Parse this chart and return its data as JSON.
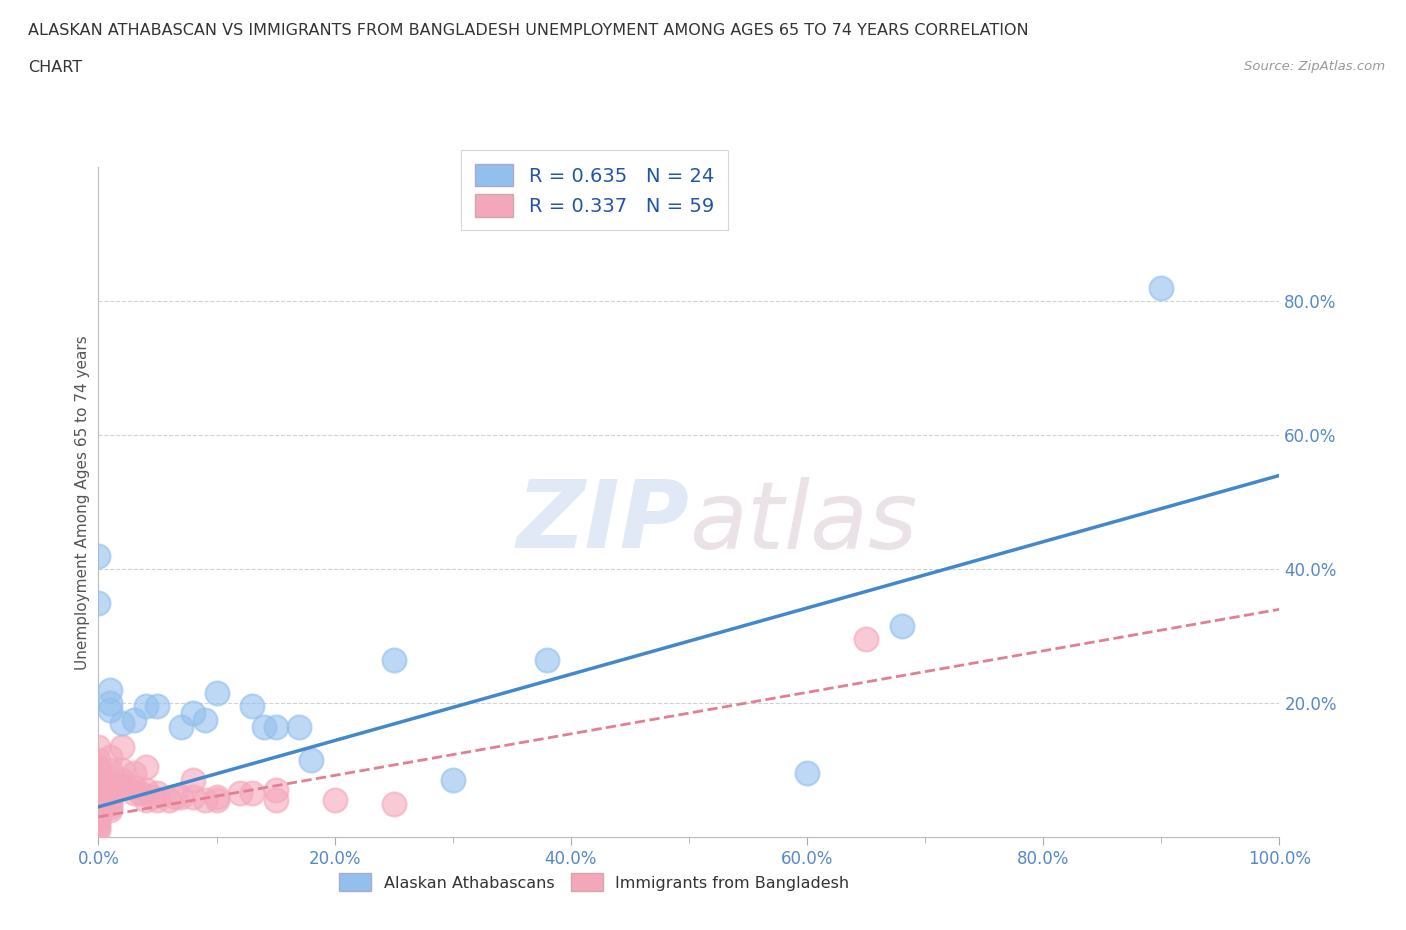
{
  "title_line1": "ALASKAN ATHABASCAN VS IMMIGRANTS FROM BANGLADESH UNEMPLOYMENT AMONG AGES 65 TO 74 YEARS CORRELATION",
  "title_line2": "CHART",
  "source": "Source: ZipAtlas.com",
  "ylabel": "Unemployment Among Ages 65 to 74 years",
  "xlim": [
    0.0,
    1.0
  ],
  "ylim": [
    0.0,
    1.0
  ],
  "xtick_labels": [
    "0.0%",
    "",
    "",
    "",
    "",
    "",
    "",
    "",
    "",
    "",
    "20.0%",
    "",
    "",
    "",
    "",
    "",
    "",
    "",
    "",
    "",
    "40.0%",
    "",
    "",
    "",
    "",
    "",
    "",
    "",
    "",
    "",
    "60.0%",
    "",
    "",
    "",
    "",
    "",
    "",
    "",
    "",
    "",
    "80.0%",
    "",
    "",
    "",
    "",
    "",
    "",
    "",
    "",
    "",
    "100.0%"
  ],
  "xtick_vals": [
    0.0,
    0.02,
    0.04,
    0.06,
    0.08,
    0.1,
    0.12,
    0.14,
    0.16,
    0.18,
    0.2,
    0.22,
    0.24,
    0.26,
    0.28,
    0.3,
    0.32,
    0.34,
    0.36,
    0.38,
    0.4,
    0.42,
    0.44,
    0.46,
    0.48,
    0.5,
    0.52,
    0.54,
    0.56,
    0.58,
    0.6,
    0.62,
    0.64,
    0.66,
    0.68,
    0.7,
    0.72,
    0.74,
    0.76,
    0.78,
    0.8,
    0.82,
    0.84,
    0.86,
    0.88,
    0.9,
    0.92,
    0.94,
    0.96,
    0.98,
    1.0
  ],
  "xtick_major_vals": [
    0.0,
    0.2,
    0.4,
    0.6,
    0.8,
    1.0
  ],
  "xtick_major_labels": [
    "0.0%",
    "20.0%",
    "40.0%",
    "60.0%",
    "80.0%",
    "100.0%"
  ],
  "ytick_vals": [
    0.2,
    0.4,
    0.6,
    0.8
  ],
  "ytick_labels": [
    "20.0%",
    "40.0%",
    "60.0%",
    "80.0%"
  ],
  "watermark_zip": "ZIP",
  "watermark_atlas": "atlas",
  "legend_r1": "R = 0.635   N = 24",
  "legend_r2": "R = 0.337   N = 59",
  "blue_color": "#92BFED",
  "pink_color": "#F4A7BB",
  "line_blue": "#4488CC",
  "line_pink": "#E08090",
  "tick_color": "#5588CC",
  "alaskan_points": [
    [
      0.0,
      0.42
    ],
    [
      0.0,
      0.35
    ],
    [
      0.01,
      0.22
    ],
    [
      0.01,
      0.2
    ],
    [
      0.01,
      0.19
    ],
    [
      0.02,
      0.17
    ],
    [
      0.03,
      0.175
    ],
    [
      0.04,
      0.195
    ],
    [
      0.05,
      0.195
    ],
    [
      0.07,
      0.165
    ],
    [
      0.08,
      0.185
    ],
    [
      0.09,
      0.175
    ],
    [
      0.1,
      0.215
    ],
    [
      0.13,
      0.195
    ],
    [
      0.14,
      0.165
    ],
    [
      0.15,
      0.165
    ],
    [
      0.17,
      0.165
    ],
    [
      0.18,
      0.115
    ],
    [
      0.25,
      0.265
    ],
    [
      0.3,
      0.085
    ],
    [
      0.38,
      0.265
    ],
    [
      0.6,
      0.095
    ],
    [
      0.68,
      0.315
    ],
    [
      0.9,
      0.82
    ]
  ],
  "bangladesh_points": [
    [
      0.0,
      0.135
    ],
    [
      0.0,
      0.115
    ],
    [
      0.0,
      0.105
    ],
    [
      0.0,
      0.1
    ],
    [
      0.0,
      0.09
    ],
    [
      0.0,
      0.085
    ],
    [
      0.0,
      0.075
    ],
    [
      0.0,
      0.07
    ],
    [
      0.0,
      0.065
    ],
    [
      0.0,
      0.06
    ],
    [
      0.0,
      0.055
    ],
    [
      0.0,
      0.05
    ],
    [
      0.0,
      0.045
    ],
    [
      0.0,
      0.04
    ],
    [
      0.0,
      0.035
    ],
    [
      0.0,
      0.03
    ],
    [
      0.0,
      0.025
    ],
    [
      0.0,
      0.02
    ],
    [
      0.0,
      0.015
    ],
    [
      0.0,
      0.01
    ],
    [
      0.01,
      0.12
    ],
    [
      0.01,
      0.1
    ],
    [
      0.01,
      0.08
    ],
    [
      0.01,
      0.07
    ],
    [
      0.01,
      0.06
    ],
    [
      0.01,
      0.055
    ],
    [
      0.01,
      0.05
    ],
    [
      0.01,
      0.045
    ],
    [
      0.01,
      0.04
    ],
    [
      0.02,
      0.135
    ],
    [
      0.02,
      0.1
    ],
    [
      0.02,
      0.085
    ],
    [
      0.02,
      0.075
    ],
    [
      0.025,
      0.075
    ],
    [
      0.03,
      0.095
    ],
    [
      0.03,
      0.075
    ],
    [
      0.03,
      0.065
    ],
    [
      0.035,
      0.065
    ],
    [
      0.04,
      0.105
    ],
    [
      0.04,
      0.07
    ],
    [
      0.04,
      0.055
    ],
    [
      0.045,
      0.06
    ],
    [
      0.05,
      0.065
    ],
    [
      0.05,
      0.055
    ],
    [
      0.06,
      0.055
    ],
    [
      0.065,
      0.06
    ],
    [
      0.07,
      0.06
    ],
    [
      0.08,
      0.085
    ],
    [
      0.08,
      0.06
    ],
    [
      0.09,
      0.055
    ],
    [
      0.1,
      0.06
    ],
    [
      0.1,
      0.055
    ],
    [
      0.12,
      0.065
    ],
    [
      0.13,
      0.065
    ],
    [
      0.15,
      0.07
    ],
    [
      0.15,
      0.055
    ],
    [
      0.2,
      0.055
    ],
    [
      0.25,
      0.05
    ],
    [
      0.65,
      0.295
    ]
  ],
  "blue_trend_x": [
    0.0,
    1.0
  ],
  "blue_trend_y": [
    0.045,
    0.54
  ],
  "pink_trend_x": [
    0.0,
    1.0
  ],
  "pink_trend_y": [
    0.03,
    0.34
  ],
  "background_color": "#FFFFFF",
  "grid_color": "#CCCCCC"
}
